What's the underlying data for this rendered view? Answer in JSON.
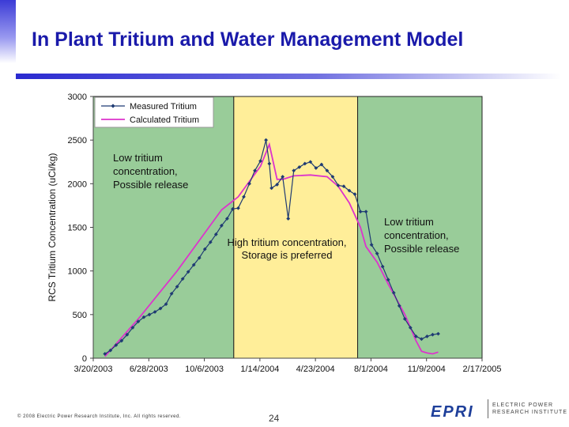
{
  "slide": {
    "title": "In Plant Tritium and Water Management Model",
    "copyright": "© 2008 Electric Power Research Institute, Inc. All rights reserved.",
    "page_number": "24",
    "logo": {
      "mark": "EPRI",
      "text": "ELECTRIC POWER RESEARCH INSTITUTE"
    },
    "colors": {
      "title": "#1a1aaa",
      "rule": "#2a2ad0",
      "logo": "#1e3f9a"
    }
  },
  "chart_data": {
    "type": "line",
    "ylabel": "RCS Tritium Concentration (uCi/kg)",
    "xlabel": "",
    "ylim": [
      0,
      3000
    ],
    "yticks": [
      0,
      500,
      1000,
      1500,
      2000,
      2500,
      3000
    ],
    "xlim": [
      "2003-03-20",
      "2005-02-17"
    ],
    "xticks": [
      "3/20/2003",
      "6/28/2003",
      "10/6/2003",
      "1/14/2004",
      "4/23/2004",
      "8/1/2004",
      "11/9/2004",
      "2/17/2005"
    ],
    "xtick_dates": [
      "2003-03-20",
      "2003-06-28",
      "2003-10-06",
      "2004-01-14",
      "2004-04-23",
      "2004-08-01",
      "2004-11-09",
      "2005-02-17"
    ],
    "grid": false,
    "legend": "top-left",
    "regions": [
      {
        "start": "2003-03-20",
        "end": "2003-11-28",
        "color": "#99cc99",
        "label": "Low tritium concentration, Possible release"
      },
      {
        "start": "2003-11-28",
        "end": "2004-07-08",
        "color": "#ffee99",
        "label": "High tritium concentration, Storage is preferred"
      },
      {
        "start": "2004-07-08",
        "end": "2005-02-17",
        "color": "#99cc99",
        "label": "Low tritium concentration, Possible release"
      }
    ],
    "annotations": [
      {
        "lines": [
          "Low tritium",
          " concentration,",
          "Possible release"
        ]
      },
      {
        "lines": [
          "High tritium concentration,",
          "Storage is preferred"
        ]
      },
      {
        "lines": [
          "Low tritium",
          " concentration,",
          "Possible release"
        ]
      }
    ],
    "series": [
      {
        "name": "Measured Tritium",
        "color": "#1f3b73",
        "marker": "diamond",
        "x": [
          "2003-04-10",
          "2003-04-20",
          "2003-04-30",
          "2003-05-10",
          "2003-05-20",
          "2003-05-30",
          "2003-06-09",
          "2003-06-19",
          "2003-06-29",
          "2003-07-09",
          "2003-07-19",
          "2003-07-29",
          "2003-08-08",
          "2003-08-18",
          "2003-08-28",
          "2003-09-07",
          "2003-09-17",
          "2003-09-27",
          "2003-10-07",
          "2003-10-17",
          "2003-10-27",
          "2003-11-06",
          "2003-11-16",
          "2003-11-26",
          "2003-12-06",
          "2003-12-16",
          "2003-12-26",
          "2004-01-05",
          "2004-01-15",
          "2004-01-25",
          "2004-01-31",
          "2004-02-04",
          "2004-02-14",
          "2004-02-24",
          "2004-03-05",
          "2004-03-15",
          "2004-03-25",
          "2004-04-04",
          "2004-04-14",
          "2004-04-24",
          "2004-05-04",
          "2004-05-14",
          "2004-05-24",
          "2004-06-03",
          "2004-06-13",
          "2004-06-23",
          "2004-07-03",
          "2004-07-13",
          "2004-07-23",
          "2004-08-02",
          "2004-08-12",
          "2004-08-22",
          "2004-09-01",
          "2004-09-11",
          "2004-09-21",
          "2004-10-01",
          "2004-10-11",
          "2004-10-21",
          "2004-10-31",
          "2004-11-10",
          "2004-11-20",
          "2004-11-30"
        ],
        "y": [
          50,
          90,
          150,
          200,
          270,
          350,
          420,
          470,
          500,
          530,
          570,
          620,
          740,
          820,
          910,
          990,
          1070,
          1150,
          1250,
          1330,
          1420,
          1520,
          1600,
          1710,
          1720,
          1850,
          2000,
          2150,
          2260,
          2500,
          2230,
          1950,
          1990,
          2080,
          1600,
          2150,
          2190,
          2230,
          2250,
          2180,
          2220,
          2150,
          2080,
          1980,
          1970,
          1920,
          1880,
          1680,
          1680,
          1300,
          1200,
          1050,
          900,
          750,
          600,
          450,
          350,
          250,
          220,
          250,
          270,
          280
        ]
      },
      {
        "name": "Calculated Tritium",
        "color": "#dd33cc",
        "marker": "none",
        "x": [
          "2003-04-10",
          "2003-06-09",
          "2003-08-18",
          "2003-11-06",
          "2003-12-06",
          "2004-01-15",
          "2004-01-31",
          "2004-02-14",
          "2004-02-24",
          "2004-03-15",
          "2004-04-14",
          "2004-05-14",
          "2004-06-03",
          "2004-06-23",
          "2004-07-13",
          "2004-07-23",
          "2004-08-12",
          "2004-09-01",
          "2004-10-01",
          "2004-10-21",
          "2004-10-31",
          "2004-11-10",
          "2004-11-20",
          "2004-11-30"
        ],
        "y": [
          20,
          450,
          1000,
          1700,
          1850,
          2200,
          2450,
          2050,
          2050,
          2090,
          2100,
          2080,
          1970,
          1780,
          1500,
          1280,
          1100,
          850,
          500,
          200,
          80,
          60,
          50,
          70
        ]
      }
    ]
  }
}
